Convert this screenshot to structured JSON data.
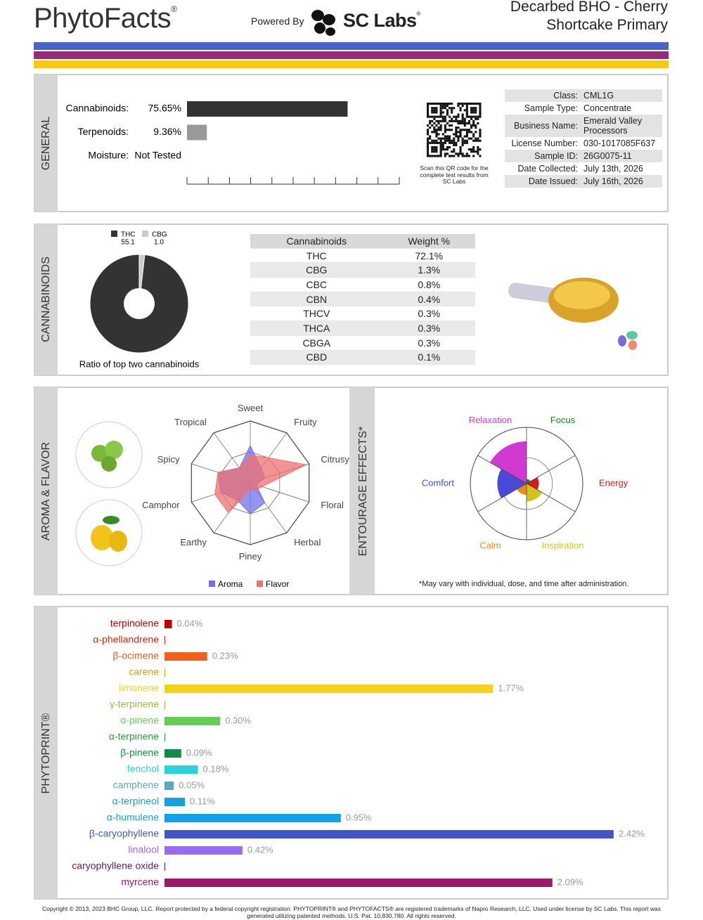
{
  "header": {
    "logo": "PhytoFacts",
    "logo_mark": "®",
    "powered_by": "Powered By",
    "lab": "SC Labs",
    "lab_mark": "®",
    "title": "Decarbed BHO - Cherry Shortcake Primary"
  },
  "sections": {
    "general": "GENERAL",
    "cannabinoids": "CANNABINOIDS",
    "aroma": "AROMA & FLAVOR",
    "entourage": "ENTOURAGE EFFECTS*",
    "phytoprint": "PHYTOPRINT®"
  },
  "qr_note": "Scan this QR code for the complete test results from SC Labs",
  "sample_info": [
    [
      "Class:",
      "CML1G"
    ],
    [
      "Sample Type:",
      "Concentrate"
    ],
    [
      "Business Name:",
      "Emerald Valley Processors"
    ],
    [
      "License Number:",
      "030-1017085F637"
    ],
    [
      "Sample ID:",
      "26G0075-11"
    ],
    [
      "Date Collected:",
      "July 13th, 2026"
    ],
    [
      "Date Issued:",
      "July 16th, 2026"
    ]
  ],
  "cannabinoid_table": {
    "header": [
      "Cannabinoids",
      "Weight %"
    ],
    "rows": [
      [
        "THC",
        "72.1%"
      ],
      [
        "CBG",
        "1.3%"
      ],
      [
        "CBC",
        "0.8%"
      ],
      [
        "CBN",
        "0.4%"
      ],
      [
        "THCV",
        "0.3%"
      ],
      [
        "THCA",
        "0.3%"
      ],
      [
        "CBGA",
        "0.3%"
      ],
      [
        "CBD",
        "0.1%"
      ]
    ]
  },
  "effects_note": "*May vary with individual, dose, and time after administration.",
  "footer": "Copyright © 2013, 2023 BHC Group, LLC. Report protected by a federal copyright registration. PHYTOPRINT® and PHYTOFACTS® are registered trademarks of Napro Research, LLC. Used under license by SC Labs. This report was generated utilizing patented methods. U.S. Pat. 10,830,780. All rights reserved.",
  "chart_data": [
    {
      "type": "hbar",
      "categories": [
        "Cannabinoids:",
        "Terpenoids:",
        "Moisture:"
      ],
      "values": [
        75.65,
        9.36,
        null
      ],
      "value_labels": [
        "75.65%",
        "9.36%",
        "Not Tested"
      ],
      "colors": [
        "#333333",
        "#999999",
        "#cccccc"
      ],
      "xlim": [
        0,
        100
      ],
      "xticks": [
        0,
        10,
        20,
        30,
        40,
        50,
        60,
        70,
        80,
        90,
        100
      ]
    },
    {
      "type": "pie",
      "categories": [
        "THC",
        "CBG"
      ],
      "values": [
        55.1,
        1.0
      ],
      "value_labels": [
        "55.1",
        "1.0"
      ],
      "colors": [
        "#333333",
        "#cccccc"
      ],
      "caption": "Ratio of top two cannabinoids"
    },
    {
      "type": "radar",
      "categories": [
        "Sweet",
        "Fruity",
        "Citrusy",
        "Floral",
        "Herbal",
        "Piney",
        "Earthy",
        "Camphor",
        "Spicy",
        "Tropical"
      ],
      "series": [
        {
          "name": "Aroma",
          "color": "#7070ee",
          "values": [
            0.6,
            0.3,
            0.25,
            0.1,
            0.4,
            0.5,
            0.35,
            0.5,
            0.55,
            0.3
          ]
        },
        {
          "name": "Flavor",
          "color": "#ee7070",
          "values": [
            0.45,
            0.5,
            0.95,
            0.2,
            0.15,
            0.1,
            0.6,
            0.6,
            0.55,
            0.3
          ]
        }
      ],
      "rlim": [
        0,
        1
      ]
    },
    {
      "type": "polar",
      "categories": [
        "Focus",
        "Energy",
        "Inspiration",
        "Calm",
        "Comfort",
        "Relaxation"
      ],
      "values": [
        0.08,
        0.22,
        0.32,
        0.2,
        0.52,
        0.75
      ],
      "colors": [
        "#1a8a1a",
        "#d81a1a",
        "#d4c41a",
        "#f08a1a",
        "#4a4ad8",
        "#d03ad0"
      ],
      "rlim": [
        0,
        1
      ]
    },
    {
      "type": "phytoprint",
      "categories": [
        "terpinolene",
        "α-phellandrene",
        "β-ocimene",
        "carene",
        "limonene",
        "γ-terpinene",
        "α-pinene",
        "α-terpinene",
        "β-pinene",
        "fenchol",
        "camphene",
        "α-terpineol",
        "α-humulene",
        "β-caryophyllene",
        "linalool",
        "caryophyllene oxide",
        "myrcene"
      ],
      "values": [
        0.04,
        0,
        0.23,
        0,
        1.77,
        0,
        0.3,
        0,
        0.09,
        0.18,
        0.05,
        0.11,
        0.95,
        2.42,
        0.42,
        0,
        2.09
      ],
      "value_labels": [
        "0.04%",
        null,
        "0.23%",
        null,
        "1.77%",
        null,
        "0.30%",
        null,
        "0.09%",
        "0.18%",
        "0.05%",
        "0.11%",
        "0.95%",
        "2.42%",
        "0.42%",
        null,
        "2.09%"
      ],
      "colors": [
        "#c00000",
        "#d42a0a",
        "#f0601a",
        "#d8a010",
        "#f5d21a",
        "#9ab83a",
        "#66cc55",
        "#2a9a40",
        "#128a4a",
        "#2ad4d4",
        "#5aa8b8",
        "#1aa0d8",
        "#12a0e8",
        "#4055c8",
        "#9a6af0",
        "#6a1a5a",
        "#9a1a6a"
      ],
      "xlim": [
        0,
        2.5
      ]
    }
  ]
}
